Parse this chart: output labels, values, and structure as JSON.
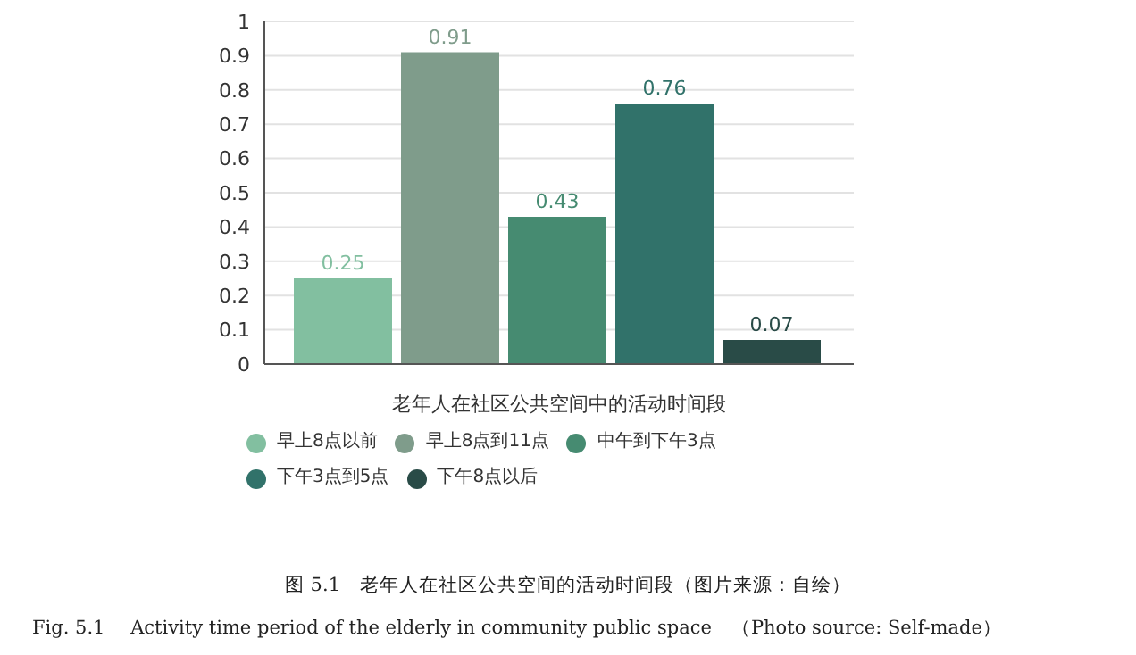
{
  "chart_data": {
    "type": "bar",
    "xlabel": "老年人在社区公共空间中的活动时间段",
    "categories": [
      null
    ],
    "series": [
      {
        "name": "早上8点以前",
        "color": "#82bfa0",
        "values": [
          0.25
        ]
      },
      {
        "name": "早上8点到11点",
        "color": "#7f9c8b",
        "values": [
          0.91
        ]
      },
      {
        "name": "中午到下午3点",
        "color": "#468b71",
        "values": [
          0.43
        ]
      },
      {
        "name": "下午3点到5点",
        "color": "#31726a",
        "values": [
          0.76
        ]
      },
      {
        "name": "下午8点以后",
        "color": "#294b47",
        "values": [
          0.07
        ]
      }
    ],
    "ylim": [
      0,
      1
    ],
    "yticks": [
      0,
      0.1,
      0.2,
      0.3,
      0.4,
      0.5,
      0.6,
      0.7,
      0.8,
      0.9,
      1
    ],
    "grid": "y",
    "legend": "bottom",
    "data_labels": true,
    "annotations": [
      "图 5.1　老年人在社区公共空间的活动时间段（图片来源：自绘）",
      "Fig. 5.1　 Activity time period of the elderly in community public space　（Photo source: Self-made）"
    ]
  }
}
